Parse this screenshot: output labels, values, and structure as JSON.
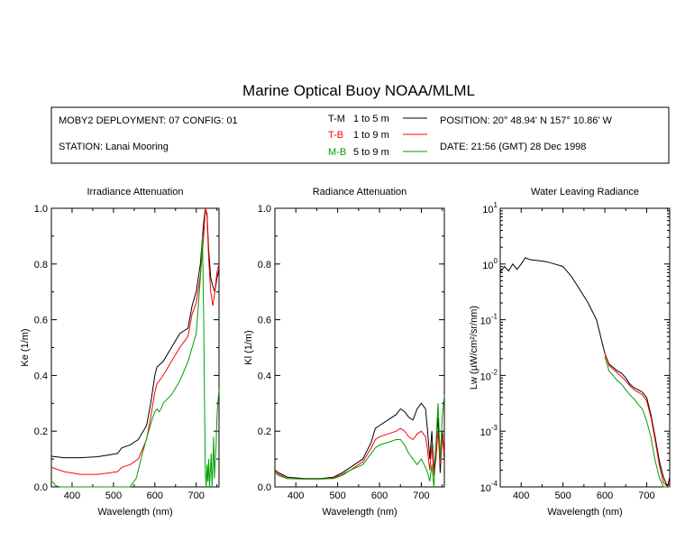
{
  "header": {
    "title": "Marine Optical Buoy NOAA/MLML",
    "deployment": "MOBY2 DEPLOYMENT: 07 CONFIG: 01",
    "station": "STATION: Lanai Mooring",
    "position": "POSITION: 20° 48.94' N   157° 10.86' W",
    "date": "DATE: 21:56 (GMT) 28 Dec 1998",
    "legend": [
      {
        "code": "T-M",
        "range": "1 to 5  m",
        "color": "#000000"
      },
      {
        "code": "T-B",
        "range": "1 to 9  m",
        "color": "#ff0000"
      },
      {
        "code": "M-B",
        "range": "5 to 9  m",
        "color": "#00a000"
      }
    ]
  },
  "chart_data": [
    {
      "type": "line",
      "title": "Irradiance Attenuation",
      "xlabel": "Wavelength (nm)",
      "ylabel": "Ke  (1/m)",
      "xlim": [
        350,
        755
      ],
      "ylim": [
        0.0,
        1.0
      ],
      "xticks": [
        400,
        500,
        600,
        700
      ],
      "yticks": [
        "0.0",
        "0.2",
        "0.4",
        "0.6",
        "0.8",
        "1.0"
      ],
      "series": [
        {
          "name": "T-M",
          "color": "#000000",
          "x": [
            350,
            380,
            420,
            460,
            490,
            510,
            520,
            540,
            560,
            580,
            590,
            600,
            605,
            620,
            640,
            660,
            670,
            680,
            690,
            700,
            710,
            718,
            722,
            726,
            730,
            735,
            740,
            745,
            750,
            755
          ],
          "y": [
            0.11,
            0.105,
            0.105,
            0.108,
            0.115,
            0.12,
            0.14,
            0.15,
            0.17,
            0.22,
            0.3,
            0.4,
            0.43,
            0.45,
            0.5,
            0.55,
            0.56,
            0.57,
            0.65,
            0.7,
            0.8,
            0.95,
            1.0,
            0.98,
            0.85,
            0.75,
            0.72,
            0.7,
            0.75,
            0.78
          ]
        },
        {
          "name": "T-B",
          "color": "#ff0000",
          "x": [
            350,
            380,
            420,
            460,
            490,
            510,
            520,
            540,
            560,
            580,
            590,
            600,
            605,
            620,
            640,
            660,
            670,
            680,
            690,
            700,
            710,
            718,
            722,
            726,
            730,
            735,
            740,
            745,
            750,
            755
          ],
          "y": [
            0.07,
            0.055,
            0.045,
            0.045,
            0.05,
            0.055,
            0.07,
            0.08,
            0.1,
            0.17,
            0.25,
            0.34,
            0.37,
            0.4,
            0.45,
            0.5,
            0.52,
            0.54,
            0.62,
            0.66,
            0.76,
            0.9,
            1.0,
            0.97,
            0.82,
            0.7,
            0.65,
            0.7,
            0.77,
            0.8
          ]
        },
        {
          "name": "M-B",
          "color": "#00a000",
          "x": [
            350,
            355,
            360,
            370,
            500,
            540,
            555,
            570,
            585,
            595,
            600,
            605,
            610,
            615,
            620,
            640,
            660,
            680,
            700,
            710,
            715,
            718,
            720,
            722,
            724,
            726,
            728,
            730,
            732,
            734,
            736,
            738,
            740,
            742,
            744,
            746,
            748,
            750,
            752,
            755
          ],
          "y": [
            0.02,
            0.015,
            0.005,
            0.0,
            0.0,
            0.0,
            0.03,
            0.12,
            0.2,
            0.25,
            0.27,
            0.28,
            0.27,
            0.28,
            0.3,
            0.33,
            0.38,
            0.45,
            0.55,
            0.75,
            0.9,
            0.6,
            0.3,
            0.05,
            0.0,
            0.08,
            0.02,
            0.1,
            0.0,
            0.06,
            0.12,
            0.0,
            0.08,
            0.18,
            0.03,
            0.1,
            0.15,
            0.25,
            0.3,
            0.35
          ]
        }
      ]
    },
    {
      "type": "line",
      "title": "Radiance Attenuation",
      "xlabel": "Wavelength (nm)",
      "ylabel": "Kl  (1/m)",
      "xlim": [
        350,
        755
      ],
      "ylim": [
        0.0,
        1.0
      ],
      "xticks": [
        400,
        500,
        600,
        700
      ],
      "yticks": [
        "0.0",
        "0.2",
        "0.4",
        "0.6",
        "0.8",
        "1.0"
      ],
      "series": [
        {
          "name": "T-M",
          "color": "#000000",
          "x": [
            350,
            360,
            380,
            420,
            460,
            490,
            510,
            530,
            560,
            580,
            590,
            600,
            620,
            640,
            650,
            660,
            670,
            680,
            690,
            700,
            710,
            715,
            720,
            725,
            730,
            735,
            740,
            745,
            750,
            755
          ],
          "y": [
            0.06,
            0.05,
            0.035,
            0.03,
            0.03,
            0.035,
            0.05,
            0.07,
            0.1,
            0.16,
            0.21,
            0.22,
            0.24,
            0.26,
            0.28,
            0.27,
            0.25,
            0.24,
            0.28,
            0.3,
            0.28,
            0.2,
            0.1,
            0.2,
            0.05,
            0.15,
            0.25,
            0.05,
            0.2,
            0.1
          ]
        },
        {
          "name": "T-B",
          "color": "#ff0000",
          "x": [
            350,
            360,
            380,
            420,
            460,
            490,
            510,
            530,
            560,
            580,
            590,
            600,
            620,
            640,
            650,
            660,
            670,
            680,
            690,
            700,
            710,
            715,
            720,
            725,
            730,
            735,
            740,
            745,
            750,
            755
          ],
          "y": [
            0.055,
            0.045,
            0.03,
            0.028,
            0.028,
            0.032,
            0.045,
            0.06,
            0.09,
            0.14,
            0.17,
            0.18,
            0.19,
            0.2,
            0.21,
            0.2,
            0.18,
            0.17,
            0.19,
            0.2,
            0.18,
            0.13,
            0.06,
            0.15,
            0.04,
            0.1,
            0.2,
            0.08,
            0.18,
            0.12
          ]
        },
        {
          "name": "M-B",
          "color": "#00a000",
          "x": [
            350,
            360,
            380,
            420,
            460,
            490,
            510,
            530,
            560,
            580,
            590,
            600,
            620,
            640,
            650,
            660,
            670,
            680,
            690,
            700,
            710,
            715,
            720,
            725,
            730,
            735,
            740,
            745,
            750,
            755
          ],
          "y": [
            0.05,
            0.04,
            0.03,
            0.028,
            0.028,
            0.03,
            0.04,
            0.06,
            0.08,
            0.12,
            0.14,
            0.15,
            0.16,
            0.17,
            0.17,
            0.15,
            0.12,
            0.1,
            0.08,
            0.1,
            0.07,
            0.05,
            0.02,
            0.08,
            0.0,
            0.15,
            0.3,
            0.1,
            0.25,
            0.33
          ]
        }
      ]
    },
    {
      "type": "line",
      "scale": "log",
      "title": "Water Leaving Radiance",
      "xlabel": "Wavelength (nm)",
      "ylabel": "Lw  (µW/cm²/sr/nm)",
      "xlim": [
        350,
        755
      ],
      "ylim": [
        0.0001,
        10
      ],
      "xticks": [
        400,
        500,
        600,
        700
      ],
      "yticks": [
        {
          "base": "10",
          "exp": "1"
        },
        {
          "base": "10",
          "exp": "0"
        },
        {
          "base": "10",
          "exp": "-1"
        },
        {
          "base": "10",
          "exp": "-2"
        },
        {
          "base": "10",
          "exp": "-3"
        },
        {
          "base": "10",
          "exp": "-4"
        }
      ],
      "series": [
        {
          "name": "T-M",
          "color": "#000000",
          "x": [
            350,
            360,
            370,
            380,
            390,
            400,
            410,
            420,
            440,
            460,
            480,
            500,
            520,
            540,
            560,
            580,
            590,
            600,
            610,
            620,
            630,
            640,
            650,
            660,
            670,
            680,
            690,
            700,
            710,
            720,
            730,
            740,
            750,
            755
          ],
          "y": [
            0.7,
            0.9,
            0.75,
            1.0,
            0.8,
            1.0,
            1.3,
            1.2,
            1.15,
            1.1,
            1.0,
            0.9,
            0.6,
            0.35,
            0.2,
            0.1,
            0.05,
            0.025,
            0.016,
            0.014,
            0.012,
            0.011,
            0.009,
            0.007,
            0.006,
            0.0055,
            0.005,
            0.004,
            0.002,
            0.0008,
            0.0003,
            0.00015,
            0.0001,
            0.00015
          ]
        },
        {
          "name": "T-B",
          "color": "#ff0000",
          "x": [
            600,
            610,
            620,
            630,
            640,
            650,
            660,
            670,
            680,
            690,
            700,
            710,
            720,
            730,
            740,
            750,
            755
          ],
          "y": [
            0.025,
            0.015,
            0.013,
            0.011,
            0.0095,
            0.008,
            0.0065,
            0.0055,
            0.005,
            0.0045,
            0.0035,
            0.0018,
            0.0007,
            0.00025,
            0.00012,
            0.0001,
            0.00012
          ]
        },
        {
          "name": "M-B",
          "color": "#00a000",
          "x": [
            600,
            610,
            620,
            630,
            640,
            650,
            660,
            670,
            680,
            690,
            700,
            710,
            720,
            730,
            740,
            750,
            755
          ],
          "y": [
            0.022,
            0.012,
            0.01,
            0.008,
            0.007,
            0.0055,
            0.0045,
            0.0038,
            0.003,
            0.0025,
            0.0015,
            0.0008,
            0.0003,
            0.00015,
            0.0001,
            0.0001,
            0.0001
          ]
        }
      ]
    }
  ]
}
